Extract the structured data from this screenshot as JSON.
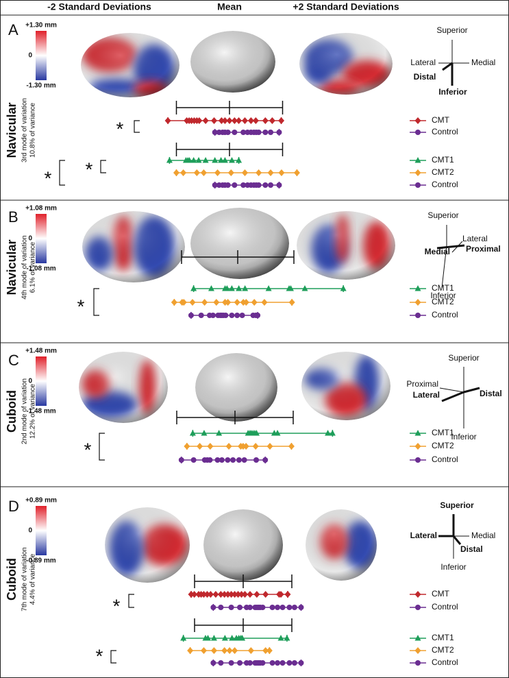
{
  "headers": [
    "-2 Standard Deviations",
    "Mean",
    "+2 Standard Deviations"
  ],
  "scale_ticks": [
    -2,
    0,
    2
  ],
  "panels": [
    {
      "letter": "A",
      "bone": "Navicular",
      "mode": "3rd mode of variation",
      "variance": "10.8% of variance",
      "colorbar": {
        "max": "+1.30 mm",
        "mid": "0",
        "min": "-1.30 mm"
      },
      "orientation": [
        {
          "text": "Superior",
          "bold": false
        },
        {
          "text": "Lateral",
          "bold": false
        },
        {
          "text": "Medial",
          "bold": false
        },
        {
          "text": "Distal",
          "bold": true
        },
        {
          "text": "Inferior",
          "bold": true
        }
      ],
      "groups": [
        {
          "significance": [
            "*"
          ],
          "series": [
            {
              "name": "CMT",
              "color": "#c0282d",
              "marker": "diamond",
              "values": [
                -2.32,
                -1.61,
                -1.52,
                -1.43,
                -1.33,
                -1.23,
                -1.14,
                -0.9,
                -0.58,
                -0.3,
                -0.17,
                0,
                0.19,
                0.35,
                0.58,
                0.81,
                0.99,
                1.35,
                1.61,
                1.95
              ]
            },
            {
              "name": "Control",
              "color": "#6a2d91",
              "marker": "circle",
              "values": [
                -0.55,
                -0.39,
                -0.26,
                -0.17,
                -0.06,
                0.19,
                0.52,
                0.68,
                0.81,
                0.92,
                1.01,
                1.1,
                1.35,
                1.55,
                1.87
              ]
            }
          ]
        },
        {
          "significance": [
            "*",
            "*"
          ],
          "series": [
            {
              "name": "CMT1",
              "color": "#1e9e5a",
              "marker": "triangle",
              "values": [
                -2.26,
                -1.64,
                -1.57,
                -1.51,
                -1.35,
                -1.16,
                -0.9,
                -0.55,
                -0.32,
                -0.17,
                0.09,
                0.35
              ]
            },
            {
              "name": "CMT2",
              "color": "#f0a030",
              "marker": "diamond",
              "values": [
                -2,
                -1.74,
                -1.23,
                -0.97,
                -0.45,
                0.06,
                0.58,
                1.1,
                1.55,
                1.96,
                2.54
              ]
            },
            {
              "name": "Control",
              "color": "#6a2d91",
              "marker": "circle",
              "values": [
                -0.55,
                -0.39,
                -0.26,
                -0.17,
                -0.06,
                0.19,
                0.52,
                0.68,
                0.81,
                0.92,
                1.01,
                1.1,
                1.35,
                1.55,
                1.87
              ]
            }
          ]
        }
      ]
    },
    {
      "letter": "B",
      "bone": "Navicular",
      "mode": "4th mode of variation",
      "variance": "6.1% of variance",
      "colorbar": {
        "max": "+1.08 mm",
        "mid": "0",
        "min": "-1.08 mm"
      },
      "orientation": [
        {
          "text": "Superior",
          "bold": false
        },
        {
          "text": "Lateral",
          "bold": false
        },
        {
          "text": "Proximal",
          "bold": true
        },
        {
          "text": "Medial",
          "bold": true
        },
        {
          "text": "Inferior",
          "bold": false
        }
      ],
      "groups": [
        {
          "significance": [
            "*"
          ],
          "series": [
            {
              "name": "CMT1",
              "color": "#1e9e5a",
              "marker": "triangle",
              "values": [
                -1.57,
                -0.94,
                -0.45,
                -0.38,
                -0.21,
                0.04,
                0.26,
                1.1,
                1.83,
                1.89,
                2.39,
                3.76
              ]
            },
            {
              "name": "CMT2",
              "color": "#f0a030",
              "marker": "diamond",
              "values": [
                -2.26,
                -1.98,
                -1.92,
                -1.61,
                -1.18,
                -0.76,
                -0.45,
                -0.35,
                -0.02,
                0.2,
                0.3,
                0.59,
                0.95,
                1.93
              ]
            },
            {
              "name": "Control",
              "color": "#6a2d91",
              "marker": "circle",
              "values": [
                -1.66,
                -1.3,
                -1,
                -0.88,
                -0.7,
                -0.62,
                -0.57,
                -0.51,
                -0.43,
                -0.21,
                -0.02,
                0.16,
                0.55,
                0.65,
                0.71
              ]
            }
          ]
        }
      ]
    },
    {
      "letter": "C",
      "bone": "Cuboid",
      "mode": "2nd mode of variation",
      "variance": "12.2% of variance",
      "colorbar": {
        "max": "+1.48 mm",
        "mid": "0",
        "min": "-1.48 mm"
      },
      "orientation": [
        {
          "text": "Superior",
          "bold": false
        },
        {
          "text": "Proximal",
          "bold": false
        },
        {
          "text": "Lateral",
          "bold": true
        },
        {
          "text": "Distal",
          "bold": true
        },
        {
          "text": "Inferior",
          "bold": false
        }
      ],
      "groups": [
        {
          "significance": [
            "*"
          ],
          "series": [
            {
              "name": "CMT1",
              "color": "#1e9e5a",
              "marker": "triangle",
              "values": [
                -1.45,
                -1.06,
                -0.55,
                0.45,
                0.51,
                0.56,
                0.62,
                0.68,
                0.74,
                1.35,
                1.46,
                3.19,
                3.35
              ]
            },
            {
              "name": "CMT2",
              "color": "#f0a030",
              "marker": "diamond",
              "values": [
                -1.65,
                -1.21,
                -0.85,
                -0.21,
                0.2,
                0.28,
                0.38,
                0.71,
                1.2,
                1.94
              ]
            },
            {
              "name": "Control",
              "color": "#6a2d91",
              "marker": "circle",
              "values": [
                -1.84,
                -1.42,
                -1.04,
                -0.95,
                -0.86,
                -0.6,
                -0.45,
                -0.25,
                -0.07,
                0.14,
                0.32,
                0.73,
                1.04
              ]
            }
          ]
        }
      ]
    },
    {
      "letter": "D",
      "bone": "Cuboid",
      "mode": "7th mode of variation",
      "variance": "4.4% of variance",
      "colorbar": {
        "max": "+0.89 mm",
        "mid": "0",
        "min": "-0.89 mm"
      },
      "orientation": [
        {
          "text": "Superior",
          "bold": true
        },
        {
          "text": "Lateral",
          "bold": true
        },
        {
          "text": "Medial",
          "bold": false
        },
        {
          "text": "Distal",
          "bold": true
        },
        {
          "text": "Inferior",
          "bold": false
        }
      ],
      "groups": [
        {
          "significance": [
            "*"
          ],
          "series": [
            {
              "name": "CMT",
              "color": "#c0282d",
              "marker": "diamond",
              "values": [
                -2.14,
                -2.01,
                -1.83,
                -1.73,
                -1.62,
                -1.48,
                -1.34,
                -1.13,
                -0.92,
                -0.77,
                -0.63,
                -0.49,
                -0.35,
                -0.21,
                -0.07,
                0.07,
                0.28,
                0.56,
                0.92,
                1.48,
                1.55,
                1.83
              ]
            },
            {
              "name": "Control",
              "color": "#6a2d91",
              "marker": "circle",
              "values": [
                -1.23,
                -0.92,
                -0.49,
                -0.14,
                0.14,
                0.28,
                0.49,
                0.56,
                0.63,
                0.7,
                0.8,
                1.2,
                1.41,
                1.62,
                1.9,
                2.11,
                2.38
              ]
            }
          ]
        },
        {
          "significance": [
            "*"
          ],
          "series": [
            {
              "name": "CMT1",
              "color": "#1e9e5a",
              "marker": "triangle",
              "values": [
                -2.46,
                -1.55,
                -1.45,
                -1.2,
                -0.75,
                -0.46,
                -0.28,
                -0.18,
                -0.1,
                -0.04,
                1.55,
                1.8
              ]
            },
            {
              "name": "CMT2",
              "color": "#f0a030",
              "marker": "diamond",
              "values": [
                -2.18,
                -1.62,
                -1.2,
                -0.77,
                -0.56,
                -0.35,
                0.32,
                0.92,
                1.08
              ]
            },
            {
              "name": "Control",
              "color": "#6a2d91",
              "marker": "circle",
              "values": [
                -1.23,
                -0.92,
                -0.49,
                -0.14,
                0.14,
                0.28,
                0.49,
                0.56,
                0.63,
                0.7,
                0.8,
                1.2,
                1.41,
                1.62,
                1.9,
                2.11,
                2.38
              ]
            }
          ]
        }
      ]
    }
  ]
}
